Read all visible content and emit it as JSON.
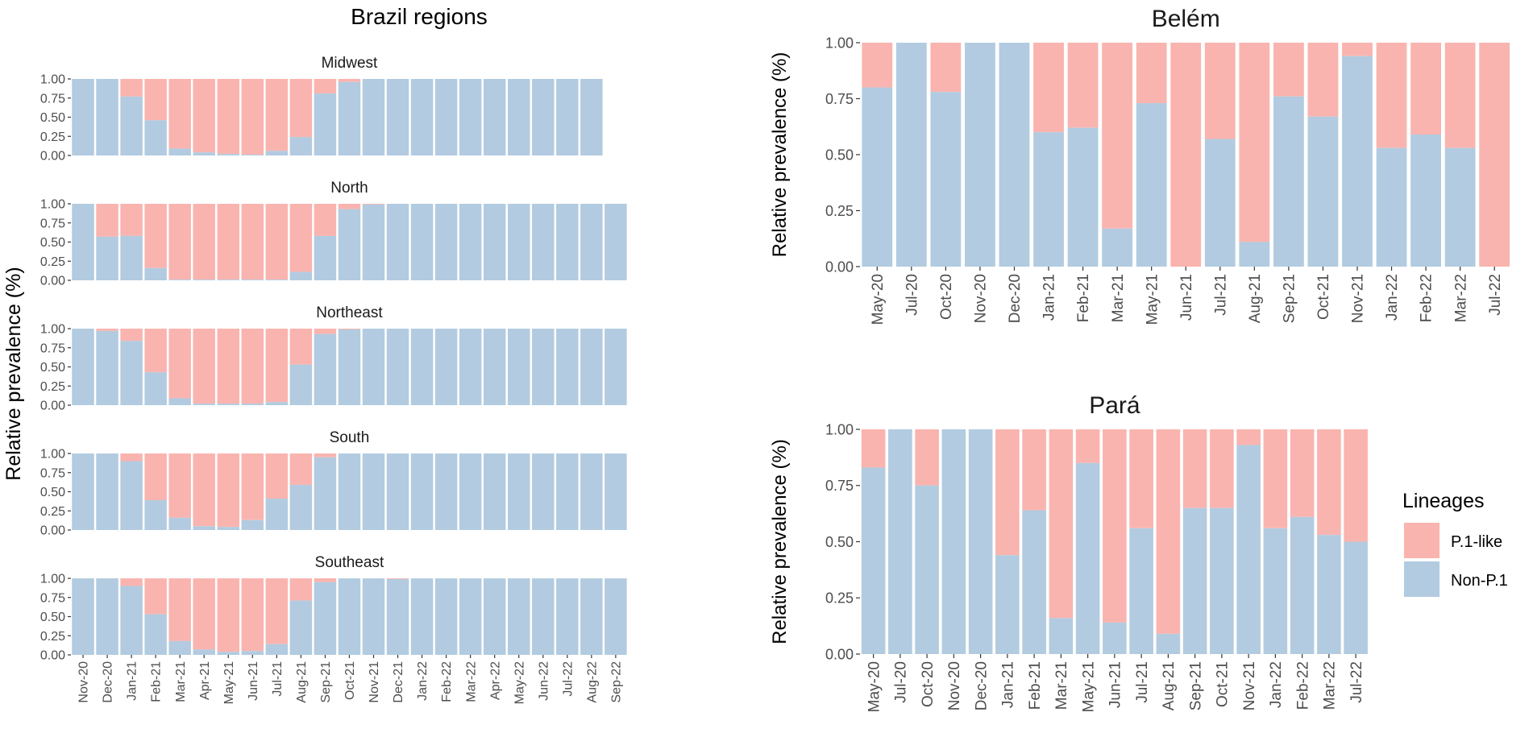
{
  "colors": {
    "p1": "#F9B4AF",
    "nonp1": "#B2CBE0",
    "axis": "#333333",
    "tick_text": "#4D4D4D"
  },
  "left_title": "Brazil regions",
  "left_ylabel": "Relative prevalence (%)",
  "legend": {
    "title": "Lineages",
    "items": [
      {
        "label": "P.1-like",
        "color_key": "p1"
      },
      {
        "label": "Non-P.1",
        "color_key": "nonp1"
      }
    ]
  },
  "chart_data": [
    {
      "type": "bar",
      "stacked": true,
      "panel": "Brazil regions",
      "facet": "Midwest",
      "title": "Midwest",
      "yticks": [
        "0.00",
        "0.25",
        "0.50",
        "0.75",
        "1.00"
      ],
      "ylim": [
        0,
        1
      ],
      "categories": [
        "Nov-20",
        "Dec-20",
        "Jan-21",
        "Feb-21",
        "Mar-21",
        "Apr-21",
        "May-21",
        "Jun-21",
        "Jul-21",
        "Aug-21",
        "Sep-21",
        "Oct-21",
        "Nov-21",
        "Dec-21",
        "Jan-22",
        "Feb-22",
        "Mar-22",
        "Apr-22",
        "May-22",
        "Jun-22",
        "Jul-22",
        "Aug-22",
        "Sep-22"
      ],
      "series": [
        {
          "name": "Non-P.1",
          "values": [
            1.0,
            1.0,
            0.77,
            0.46,
            0.09,
            0.04,
            0.02,
            0.01,
            0.06,
            0.24,
            0.81,
            0.96,
            1.0,
            1.0,
            1.0,
            1.0,
            1.0,
            1.0,
            1.0,
            1.0,
            1.0,
            1.0,
            null
          ]
        },
        {
          "name": "P.1-like",
          "values": [
            0.0,
            0.0,
            0.23,
            0.54,
            0.91,
            0.96,
            0.98,
            0.99,
            0.94,
            0.76,
            0.19,
            0.04,
            0.0,
            0.0,
            0.0,
            0.0,
            0.0,
            0.0,
            0.0,
            0.0,
            0.0,
            0.0,
            null
          ]
        }
      ]
    },
    {
      "type": "bar",
      "stacked": true,
      "panel": "Brazil regions",
      "facet": "North",
      "title": "North",
      "yticks": [
        "0.00",
        "0.25",
        "0.50",
        "0.75",
        "1.00"
      ],
      "ylim": [
        0,
        1
      ],
      "categories": [
        "Nov-20",
        "Dec-20",
        "Jan-21",
        "Feb-21",
        "Mar-21",
        "Apr-21",
        "May-21",
        "Jun-21",
        "Jul-21",
        "Aug-21",
        "Sep-21",
        "Oct-21",
        "Nov-21",
        "Dec-21",
        "Jan-22",
        "Feb-22",
        "Mar-22",
        "Apr-22",
        "May-22",
        "Jun-22",
        "Jul-22",
        "Aug-22",
        "Sep-22"
      ],
      "series": [
        {
          "name": "Non-P.1",
          "values": [
            1.0,
            0.57,
            0.58,
            0.16,
            0.01,
            0.01,
            0.01,
            0.01,
            0.01,
            0.11,
            0.58,
            0.93,
            0.99,
            1.0,
            1.0,
            1.0,
            1.0,
            1.0,
            1.0,
            1.0,
            1.0,
            1.0,
            1.0
          ]
        },
        {
          "name": "P.1-like",
          "values": [
            0.0,
            0.43,
            0.42,
            0.84,
            0.99,
            0.99,
            0.99,
            0.99,
            0.99,
            0.89,
            0.42,
            0.07,
            0.01,
            0.0,
            0.0,
            0.0,
            0.0,
            0.0,
            0.0,
            0.0,
            0.0,
            0.0,
            0.0
          ]
        }
      ]
    },
    {
      "type": "bar",
      "stacked": true,
      "panel": "Brazil regions",
      "facet": "Northeast",
      "title": "Northeast",
      "yticks": [
        "0.00",
        "0.25",
        "0.50",
        "0.75",
        "1.00"
      ],
      "ylim": [
        0,
        1
      ],
      "categories": [
        "Nov-20",
        "Dec-20",
        "Jan-21",
        "Feb-21",
        "Mar-21",
        "Apr-21",
        "May-21",
        "Jun-21",
        "Jul-21",
        "Aug-21",
        "Sep-21",
        "Oct-21",
        "Nov-21",
        "Dec-21",
        "Jan-22",
        "Feb-22",
        "Mar-22",
        "Apr-22",
        "May-22",
        "Jun-22",
        "Jul-22",
        "Aug-22",
        "Sep-22"
      ],
      "series": [
        {
          "name": "Non-P.1",
          "values": [
            1.0,
            0.97,
            0.84,
            0.43,
            0.09,
            0.02,
            0.02,
            0.02,
            0.04,
            0.53,
            0.93,
            0.99,
            1.0,
            1.0,
            1.0,
            1.0,
            1.0,
            1.0,
            1.0,
            1.0,
            1.0,
            1.0,
            1.0
          ]
        },
        {
          "name": "P.1-like",
          "values": [
            0.0,
            0.03,
            0.16,
            0.57,
            0.91,
            0.98,
            0.98,
            0.98,
            0.96,
            0.47,
            0.07,
            0.01,
            0.0,
            0.0,
            0.0,
            0.0,
            0.0,
            0.0,
            0.0,
            0.0,
            0.0,
            0.0,
            0.0
          ]
        }
      ]
    },
    {
      "type": "bar",
      "stacked": true,
      "panel": "Brazil regions",
      "facet": "South",
      "title": "South",
      "yticks": [
        "0.00",
        "0.25",
        "0.50",
        "0.75",
        "1.00"
      ],
      "ylim": [
        0,
        1
      ],
      "categories": [
        "Nov-20",
        "Dec-20",
        "Jan-21",
        "Feb-21",
        "Mar-21",
        "Apr-21",
        "May-21",
        "Jun-21",
        "Jul-21",
        "Aug-21",
        "Sep-21",
        "Oct-21",
        "Nov-21",
        "Dec-21",
        "Jan-22",
        "Feb-22",
        "Mar-22",
        "Apr-22",
        "May-22",
        "Jun-22",
        "Jul-22",
        "Aug-22",
        "Sep-22"
      ],
      "series": [
        {
          "name": "Non-P.1",
          "values": [
            1.0,
            1.0,
            0.9,
            0.39,
            0.16,
            0.05,
            0.04,
            0.13,
            0.41,
            0.59,
            0.95,
            1.0,
            1.0,
            1.0,
            1.0,
            1.0,
            1.0,
            1.0,
            1.0,
            1.0,
            1.0,
            1.0,
            1.0
          ]
        },
        {
          "name": "P.1-like",
          "values": [
            0.0,
            0.0,
            0.1,
            0.61,
            0.84,
            0.95,
            0.96,
            0.87,
            0.59,
            0.41,
            0.05,
            0.0,
            0.0,
            0.0,
            0.0,
            0.0,
            0.0,
            0.0,
            0.0,
            0.0,
            0.0,
            0.0,
            0.0
          ]
        }
      ]
    },
    {
      "type": "bar",
      "stacked": true,
      "panel": "Brazil regions",
      "facet": "Southeast",
      "title": "Southeast",
      "yticks": [
        "0.00",
        "0.25",
        "0.50",
        "0.75",
        "1.00"
      ],
      "ylim": [
        0,
        1
      ],
      "categories": [
        "Nov-20",
        "Dec-20",
        "Jan-21",
        "Feb-21",
        "Mar-21",
        "Apr-21",
        "May-21",
        "Jun-21",
        "Jul-21",
        "Aug-21",
        "Sep-21",
        "Oct-21",
        "Nov-21",
        "Dec-21",
        "Jan-22",
        "Feb-22",
        "Mar-22",
        "Apr-22",
        "May-22",
        "Jun-22",
        "Jul-22",
        "Aug-22",
        "Sep-22"
      ],
      "series": [
        {
          "name": "Non-P.1",
          "values": [
            1.0,
            1.0,
            0.9,
            0.53,
            0.18,
            0.07,
            0.04,
            0.05,
            0.14,
            0.71,
            0.95,
            1.0,
            1.0,
            0.99,
            1.0,
            1.0,
            1.0,
            1.0,
            1.0,
            1.0,
            1.0,
            1.0,
            1.0
          ]
        },
        {
          "name": "P.1-like",
          "values": [
            0.0,
            0.0,
            0.1,
            0.47,
            0.82,
            0.93,
            0.96,
            0.95,
            0.86,
            0.29,
            0.05,
            0.0,
            0.0,
            0.01,
            0.0,
            0.0,
            0.0,
            0.0,
            0.0,
            0.0,
            0.0,
            0.0,
            0.0
          ]
        }
      ]
    },
    {
      "type": "bar",
      "stacked": true,
      "panel": "Belém",
      "title": "Belém",
      "ylabel": "Relative prevalence (%)",
      "yticks": [
        "0.00",
        "0.25",
        "0.50",
        "0.75",
        "1.00"
      ],
      "ylim": [
        0,
        1
      ],
      "categories": [
        "May-20",
        "Jul-20",
        "Oct-20",
        "Nov-20",
        "Dec-20",
        "Jan-21",
        "Feb-21",
        "Mar-21",
        "May-21",
        "Jun-21",
        "Jul-21",
        "Aug-21",
        "Sep-21",
        "Oct-21",
        "Nov-21",
        "Jan-22",
        "Feb-22",
        "Mar-22",
        "Jul-22"
      ],
      "series": [
        {
          "name": "Non-P.1",
          "values": [
            0.8,
            1.0,
            0.78,
            1.0,
            1.0,
            0.6,
            0.62,
            0.17,
            0.73,
            0.0,
            0.57,
            0.11,
            0.76,
            0.67,
            0.94,
            0.53,
            0.59,
            0.53,
            0.0
          ]
        },
        {
          "name": "P.1-like",
          "values": [
            0.2,
            0.0,
            0.22,
            0.0,
            0.0,
            0.4,
            0.38,
            0.83,
            0.27,
            1.0,
            0.43,
            0.89,
            0.24,
            0.33,
            0.06,
            0.47,
            0.41,
            0.47,
            1.0
          ]
        }
      ]
    },
    {
      "type": "bar",
      "stacked": true,
      "panel": "Pará",
      "title": "Pará",
      "ylabel": "Relative prevalence (%)",
      "yticks": [
        "0.00",
        "0.25",
        "0.50",
        "0.75",
        "1.00"
      ],
      "ylim": [
        0,
        1
      ],
      "categories": [
        "May-20",
        "Jul-20",
        "Oct-20",
        "Nov-20",
        "Dec-20",
        "Jan-21",
        "Feb-21",
        "Mar-21",
        "May-21",
        "Jun-21",
        "Jul-21",
        "Aug-21",
        "Sep-21",
        "Oct-21",
        "Nov-21",
        "Jan-22",
        "Feb-22",
        "Mar-22",
        "Jul-22"
      ],
      "series": [
        {
          "name": "Non-P.1",
          "values": [
            0.83,
            1.0,
            0.75,
            1.0,
            1.0,
            0.44,
            0.64,
            0.16,
            0.85,
            0.14,
            0.56,
            0.09,
            0.65,
            0.65,
            0.93,
            0.56,
            0.61,
            0.53,
            0.5
          ]
        },
        {
          "name": "P.1-like",
          "values": [
            0.17,
            0.0,
            0.25,
            0.0,
            0.0,
            0.56,
            0.36,
            0.84,
            0.15,
            0.86,
            0.44,
            0.91,
            0.35,
            0.35,
            0.07,
            0.44,
            0.39,
            0.47,
            0.5
          ]
        }
      ]
    }
  ]
}
